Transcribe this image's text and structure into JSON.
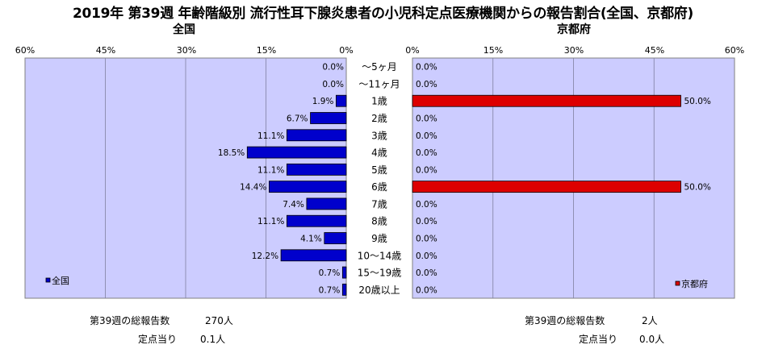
{
  "title": "2019年 第39週 年齢階級別 流行性耳下腺炎患者の小児科定点医療機関からの報告割合(全国、京都府)",
  "chart_data": {
    "type": "bar",
    "orientation": "horizontal",
    "categories": [
      "～5ヶ月",
      "～11ヶ月",
      "1歳",
      "2歳",
      "3歳",
      "4歳",
      "5歳",
      "6歳",
      "7歳",
      "8歳",
      "9歳",
      "10～14歳",
      "15～19歳",
      "20歳以上"
    ],
    "series": [
      {
        "name": "全国",
        "panel_title": "全国",
        "color": "#0000cc",
        "values": [
          0.0,
          0.0,
          1.9,
          6.7,
          11.1,
          18.5,
          11.1,
          14.4,
          7.4,
          11.1,
          4.1,
          12.2,
          0.7,
          0.7
        ],
        "value_labels": [
          "0.0%",
          "0.0%",
          "1.9%",
          "6.7%",
          "11.1%",
          "18.5%",
          "11.1%",
          "14.4%",
          "7.4%",
          "11.1%",
          "4.1%",
          "12.2%",
          "0.7%",
          "0.7%"
        ]
      },
      {
        "name": "京都府",
        "panel_title": "京都府",
        "color": "#dd0000",
        "values": [
          0.0,
          0.0,
          50.0,
          0.0,
          0.0,
          0.0,
          0.0,
          50.0,
          0.0,
          0.0,
          0.0,
          0.0,
          0.0,
          0.0
        ],
        "value_labels": [
          "0.0%",
          "0.0%",
          "50.0%",
          "0.0%",
          "0.0%",
          "0.0%",
          "0.0%",
          "50.0%",
          "0.0%",
          "0.0%",
          "0.0%",
          "0.0%",
          "0.0%",
          "0.0%"
        ]
      }
    ],
    "xlim": [
      0,
      60
    ],
    "left_ticks": [
      "60%",
      "45%",
      "30%",
      "15%",
      "0%"
    ],
    "right_ticks": [
      "0%",
      "15%",
      "30%",
      "45%",
      "60%"
    ],
    "plot_background": "#ccccff",
    "grid": true,
    "legend_placement": "bottom-left / bottom-right"
  },
  "footer": {
    "national_total_label": "第39週の総報告数",
    "national_total_value": "270人",
    "national_per_label": "定点当り",
    "national_per_value": "0.1人",
    "kyoto_total_label": "第39週の総報告数",
    "kyoto_total_value": "2人",
    "kyoto_per_label": "定点当り",
    "kyoto_per_value": "0.0人"
  }
}
